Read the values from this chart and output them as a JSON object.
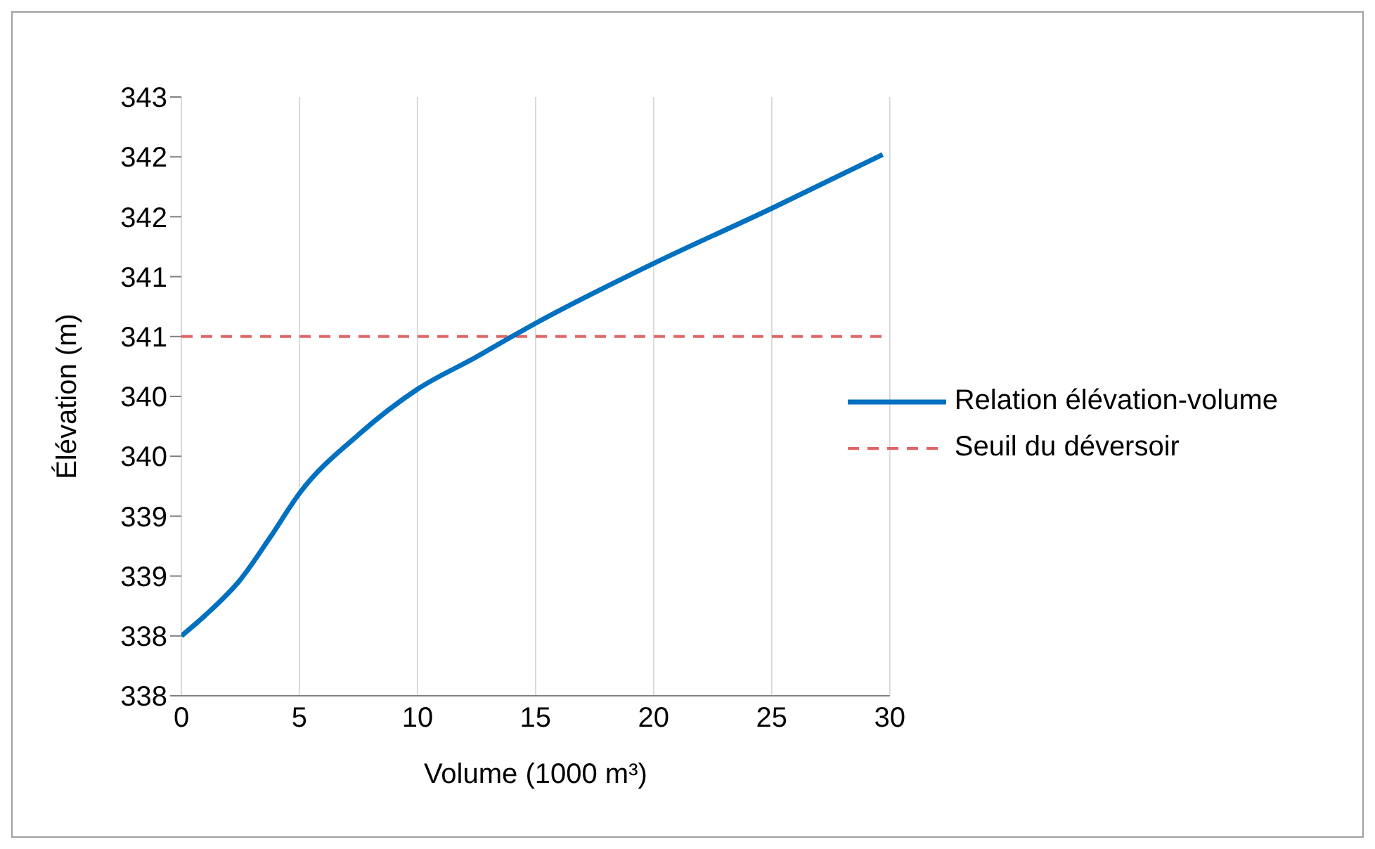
{
  "chart_data": {
    "type": "line",
    "xlabel": "Volume (1000 m³)",
    "ylabel": "Élévation (m)",
    "xlim": [
      0,
      30
    ],
    "xticks": [
      0,
      5,
      10,
      15,
      20,
      25,
      30
    ],
    "ylim": [
      337.75,
      342.75
    ],
    "yticks": [
      {
        "value": 337.75,
        "label": "338"
      },
      {
        "value": 338.25,
        "label": "338"
      },
      {
        "value": 338.75,
        "label": "339"
      },
      {
        "value": 339.25,
        "label": "339"
      },
      {
        "value": 339.75,
        "label": "340"
      },
      {
        "value": 340.25,
        "label": "340"
      },
      {
        "value": 340.75,
        "label": "341"
      },
      {
        "value": 341.25,
        "label": "341"
      },
      {
        "value": 341.75,
        "label": "342"
      },
      {
        "value": 342.25,
        "label": "342"
      },
      {
        "value": 342.75,
        "label": "343"
      }
    ],
    "grid": "x",
    "legend": "right",
    "series": [
      {
        "name": "Relation élévation-volume",
        "color": "#0070c0",
        "line_style": "solid",
        "x": [
          0,
          1,
          2.5,
          3.75,
          5,
          7.5,
          10,
          12.5,
          14,
          15,
          20,
          25,
          29.7
        ],
        "values": [
          338.25,
          338.42,
          338.72,
          339.07,
          339.44,
          339.93,
          340.31,
          340.58,
          340.75,
          340.86,
          341.36,
          341.82,
          342.27
        ]
      }
    ],
    "ref_lines": [
      {
        "axis": "y",
        "value": 340.75,
        "label": "Seuil du déversoir",
        "color": "#e06666",
        "line_style": "dashed"
      }
    ]
  }
}
